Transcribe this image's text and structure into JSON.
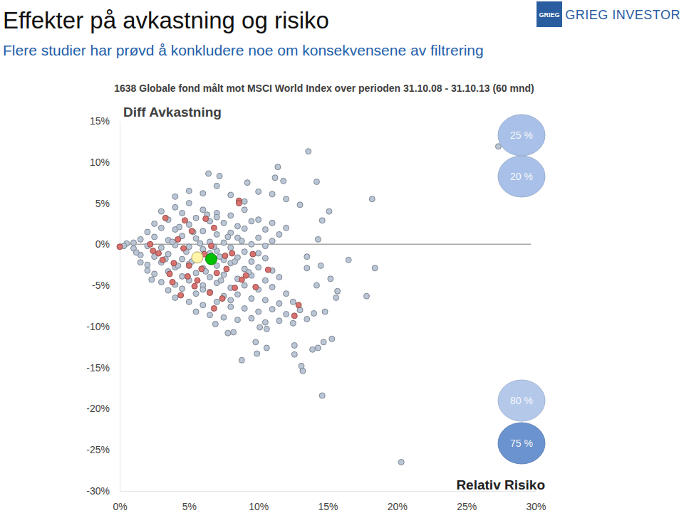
{
  "page": {
    "title": "Effekter på avkastning og risiko",
    "subtitle": "Flere studier har prøvd å konkludere noe om konsekvensene av filtrering",
    "logo_mark": "GRIEG",
    "logo_text": "GRIEG INVESTOR"
  },
  "chart_data": {
    "type": "scatter",
    "title": "1638 Globale fond målt mot MSCI World Index over perioden  31.10.08 - 31.10.13  (60 mnd)",
    "ylabel": "Diff Avkastning",
    "xlabel": "Relativ Risiko",
    "xlim": [
      0,
      30
    ],
    "ylim": [
      -30,
      15
    ],
    "xticks": [
      {
        "value": 0,
        "label": "0%"
      },
      {
        "value": 5,
        "label": "5%"
      },
      {
        "value": 10,
        "label": "10%"
      },
      {
        "value": 15,
        "label": "15%"
      },
      {
        "value": 20,
        "label": "20%"
      },
      {
        "value": 25,
        "label": "25%"
      },
      {
        "value": 30,
        "label": "30%"
      }
    ],
    "yticks": [
      {
        "value": 15,
        "label": "15%"
      },
      {
        "value": 10,
        "label": "10%"
      },
      {
        "value": 5,
        "label": "5%"
      },
      {
        "value": 0,
        "label": "0%"
      },
      {
        "value": -5,
        "label": "-5%"
      },
      {
        "value": -10,
        "label": "-10%"
      },
      {
        "value": -15,
        "label": "-15%"
      },
      {
        "value": -20,
        "label": "-20%"
      },
      {
        "value": -25,
        "label": "-25%"
      },
      {
        "value": -30,
        "label": "-30%"
      }
    ],
    "grid": false,
    "series": [
      {
        "color": "#bac6d6",
        "marker": "circle",
        "x": [
          3,
          4,
          5,
          6,
          7,
          8,
          9,
          10,
          11,
          12,
          2.5,
          3.5,
          4.5,
          5.5,
          6.5,
          7.5,
          8.5,
          9.5,
          10.5,
          11.5,
          2,
          3,
          4,
          5,
          6,
          7,
          8,
          9,
          10,
          11,
          1.5,
          2.5,
          3.5,
          4.5,
          5.5,
          6.5,
          7.5,
          8.5,
          9.5,
          10.5,
          1,
          2,
          3,
          4,
          5,
          6,
          7,
          8,
          9,
          10,
          1.5,
          2.5,
          3.5,
          4.5,
          5.5,
          6.5,
          7.5,
          8.5,
          9.5,
          10.5,
          2,
          3,
          4,
          5,
          6,
          7,
          8,
          9,
          10,
          11,
          2.5,
          3.5,
          4.5,
          5.5,
          6.5,
          7.5,
          8.5,
          9.5,
          10.5,
          11.5,
          3,
          4,
          5,
          6,
          7,
          8,
          9,
          10,
          11,
          12,
          3.5,
          4.5,
          5.5,
          6.5,
          7.5,
          8.5,
          9.5,
          10.5,
          11.5,
          12.5,
          4,
          5,
          6,
          7,
          8,
          9,
          10,
          11,
          12,
          13,
          5.5,
          6.5,
          7.5,
          8.5,
          9.5,
          10.5,
          11.5,
          12.5,
          13.5,
          14,
          4,
          5,
          6,
          7,
          8,
          9,
          10,
          11,
          12,
          13,
          1,
          0.5,
          1.5,
          2,
          0.3,
          1.2,
          2.3,
          13.5,
          14.5,
          15.2,
          6.4,
          11.4,
          14.2,
          11.8,
          15.1,
          14.6,
          16.5,
          18.4,
          17.8,
          15.7,
          15.6,
          15.3,
          14.7,
          14.3,
          13.9,
          12.6,
          12.6,
          13.1,
          13.2,
          10.6,
          10.6,
          9.8,
          9.9,
          8.8,
          8.2,
          7.8,
          10.1,
          6.9,
          14.8,
          14.2,
          13.5,
          14.3,
          13.6,
          27.3,
          18.2,
          20.3,
          14.6,
          7.2,
          9.2,
          11.2,
          3.8,
          4.8,
          5.8,
          6.8,
          7.8,
          8.8,
          4.2,
          5.2,
          6.2,
          7.2,
          4.3,
          5.3,
          6.3,
          7.3,
          8.3,
          9.3,
          3.3,
          6,
          7,
          8
        ],
        "values": [
          4,
          4.5,
          5,
          4.2,
          3.8,
          3.5,
          4.2,
          3,
          2.6,
          2,
          2.5,
          3,
          3.8,
          3.2,
          2.8,
          2.6,
          2.2,
          2.8,
          1.8,
          1.2,
          1.5,
          2,
          1.8,
          2.4,
          1.6,
          1.2,
          1.4,
          1.9,
          0.8,
          0.4,
          0.6,
          0.9,
          0.5,
          1,
          0.7,
          0.3,
          0.2,
          0.8,
          0,
          -0.2,
          -0.5,
          -0.2,
          -0.4,
          -0.1,
          -0.3,
          -0.6,
          -0.8,
          -0.4,
          -0.9,
          -1.1,
          -1.3,
          -1.5,
          -1.2,
          -1.8,
          -1.4,
          -1.1,
          -1.9,
          -1.6,
          -2.1,
          -1.7,
          -2.5,
          -2.2,
          -2.8,
          -2.4,
          -2.9,
          -2.6,
          -2.3,
          -3,
          -2.8,
          -3.2,
          -3.6,
          -3.3,
          -3.9,
          -3.5,
          -4,
          -3.7,
          -4.2,
          -3.8,
          -4.4,
          -4,
          -4.6,
          -4.9,
          -4.4,
          -5,
          -4.7,
          -5.3,
          -5,
          -5.5,
          -5.2,
          -6,
          -5.6,
          -5.4,
          -6,
          -5.8,
          -6.3,
          -6.1,
          -6.6,
          -6.8,
          -7.2,
          -7,
          -6.5,
          -7,
          -7.4,
          -7,
          -7.6,
          -7.8,
          -8.2,
          -7.9,
          -8.5,
          -8,
          -8.2,
          -8.6,
          -8.9,
          -9.2,
          -9,
          -9.5,
          -9.3,
          -9.6,
          -9.1,
          -8.4,
          5.8,
          6.5,
          6.2,
          7.1,
          6,
          5.2,
          6.4,
          6.1,
          5.5,
          4.8,
          0.2,
          0.1,
          -2.2,
          -3.2,
          -0.2,
          -1,
          -4.3,
          -1.5,
          -2.6,
          -4.2,
          8.6,
          9.4,
          7.6,
          7.7,
          4,
          2.9,
          -1.9,
          -2.9,
          -6.3,
          -5.7,
          -6.5,
          -11.5,
          -11.9,
          -12.6,
          -12.8,
          -13.4,
          -12.3,
          -14.8,
          -15.4,
          -12.6,
          -10.3,
          -11.9,
          -13.3,
          -14.1,
          -10.7,
          -10.8,
          -10.1,
          -9.7,
          -8.2,
          -5,
          -2.9,
          0.6,
          11.3,
          11.9,
          5.5,
          -26.5,
          -18.4,
          8.3,
          7.5,
          8.1,
          0.3,
          -0.9,
          0.1,
          -0.3,
          0.9,
          0.4,
          -2.6,
          -2.1,
          -3.3,
          -1.5,
          2.1,
          1.5,
          3.6,
          -4.4,
          -2.1,
          -3.4,
          -1.8,
          -5.5,
          3.3,
          -6.8
        ]
      },
      {
        "color": "#d9726f",
        "marker": "circle",
        "x": [
          0,
          2.2,
          3.3,
          8.6,
          8.6,
          12.9,
          12.6,
          10.7,
          9.8,
          9.6,
          8.3,
          6.5,
          5.4,
          3.9,
          2.8,
          6.8,
          6.2,
          5.2,
          4.7,
          4.2,
          3.6,
          7.7,
          8.1,
          7.6,
          5.9,
          4.9,
          8.8,
          7,
          2.4,
          3.1,
          4.6,
          5.6,
          6.6,
          7.4,
          5,
          6.1,
          3.8,
          9.1,
          4.4,
          6.8
        ],
        "values": [
          -0.3,
          0,
          3.2,
          5.3,
          5,
          -7.4,
          -8.7,
          -3.1,
          -5.2,
          -1.2,
          -5.3,
          -5.9,
          -5.1,
          -2.3,
          -1.1,
          2,
          3.1,
          1.6,
          2.9,
          0.6,
          -3.6,
          -3,
          -1.1,
          -1.4,
          -3,
          -3.9,
          -4.3,
          -3.5,
          -0.8,
          -1.9,
          -0.5,
          -4.4,
          -0.2,
          -6.6,
          -2.6,
          -1.2,
          -4.6,
          -3.8,
          -6.2,
          -7.8
        ]
      },
      {
        "color": "#fff4a8",
        "marker": "large_circle",
        "x": [
          5.6
        ],
        "values": [
          -1.6
        ]
      },
      {
        "color": "#00c000",
        "marker": "large_circle",
        "x": [
          6.6
        ],
        "values": [
          -1.8
        ]
      }
    ],
    "annotations": [
      {
        "text": "25 %",
        "color": "#a9c1e8"
      },
      {
        "text": "20 %",
        "color": "#a9c1e8"
      },
      {
        "text": "80 %",
        "color": "#b4c9ea"
      },
      {
        "text": "75 %",
        "color": "#6b93cf"
      }
    ]
  }
}
